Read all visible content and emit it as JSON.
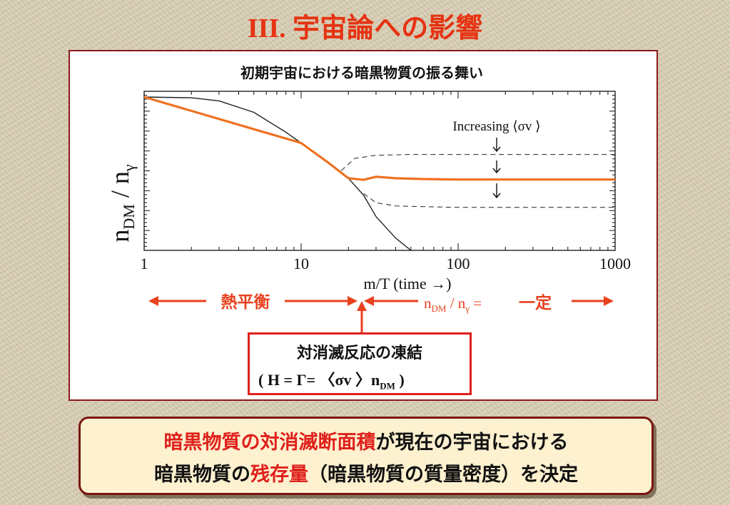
{
  "slide": {
    "title": "III. 宇宙論への影響"
  },
  "colors": {
    "title_red": "#e63312",
    "accent_orange": "#f07020",
    "arrow_red": "#e8411e",
    "box_border": "#8a1a1a"
  },
  "chart_data": {
    "type": "line",
    "title": "初期宇宙における暗黒物質の振る舞い",
    "xlabel": "m/T  (time →)",
    "ylabel": "n_DM / n_γ",
    "x_scale": "log",
    "xlim": [
      1,
      1000
    ],
    "x_ticks": [
      "1",
      "10",
      "100",
      "1000"
    ],
    "y_ticks_labeled": false,
    "annotation": "Increasing ⟨σv ⟩",
    "series": [
      {
        "role": "equilibrium",
        "style": "solid-black",
        "x": [
          1,
          2,
          3,
          5,
          8,
          10,
          15,
          20,
          25,
          30,
          40,
          50
        ],
        "y": [
          1.0,
          0.995,
          0.975,
          0.9,
          0.77,
          0.7,
          0.57,
          0.47,
          0.36,
          0.22,
          0.08,
          0.0
        ]
      },
      {
        "role": "relic-middle",
        "style": "solid-orange",
        "x": [
          1,
          10,
          15,
          20,
          25,
          30,
          40,
          60,
          100,
          1000
        ],
        "y": [
          1.0,
          0.7,
          0.57,
          0.47,
          0.46,
          0.48,
          0.47,
          0.465,
          0.462,
          0.462
        ]
      },
      {
        "role": "relic-upper",
        "style": "dashed-black",
        "x": [
          18,
          22,
          30,
          50,
          100,
          1000
        ],
        "y": [
          0.52,
          0.6,
          0.62,
          0.625,
          0.625,
          0.625
        ]
      },
      {
        "role": "relic-lower",
        "style": "dashed-black",
        "x": [
          25,
          30,
          40,
          60,
          100,
          1000
        ],
        "y": [
          0.37,
          0.31,
          0.29,
          0.285,
          0.28,
          0.28
        ]
      }
    ]
  },
  "labels": {
    "eq_label": "熱平衡",
    "const_label": "一定",
    "freeze_title": "対消滅反応の凍結"
  },
  "bottom": {
    "line1_red": "暗黒物質の対消滅断面積",
    "line1_rest": "が現在の宇宙における",
    "line2_a": "暗黒物質の",
    "line2_red": "残存量",
    "line2_b": "（暗黒物質の質量密度）を決定"
  }
}
